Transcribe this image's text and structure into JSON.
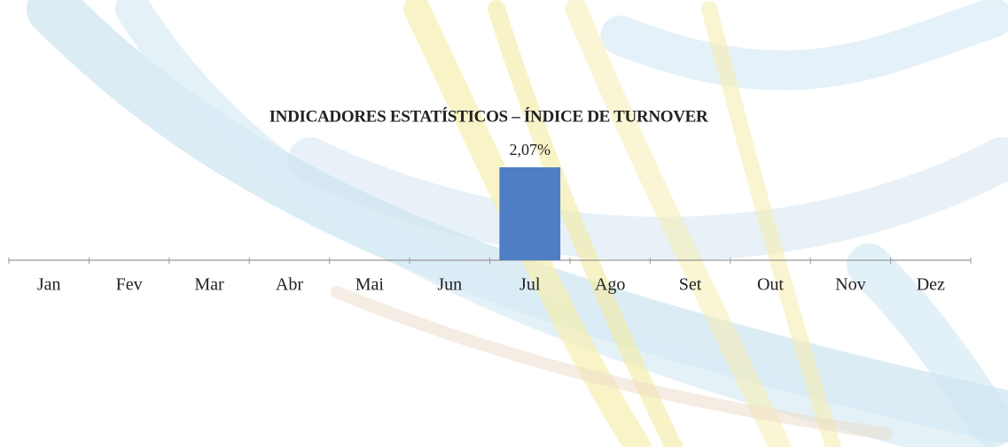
{
  "chart_data": {
    "type": "bar",
    "title": "INDICADORES ESTATÍSTICOS – ÍNDICE DE TURNOVER",
    "categories": [
      "Jan",
      "Fev",
      "Mar",
      "Abr",
      "Mai",
      "Jun",
      "Jul",
      "Ago",
      "Set",
      "Out",
      "Nov",
      "Dez"
    ],
    "values": [
      null,
      null,
      null,
      null,
      null,
      null,
      2.07,
      null,
      null,
      null,
      null,
      null
    ],
    "value_labels": [
      null,
      null,
      null,
      null,
      null,
      null,
      "2,07%",
      null,
      null,
      null,
      null,
      null
    ],
    "color": "#4f7ec4"
  }
}
